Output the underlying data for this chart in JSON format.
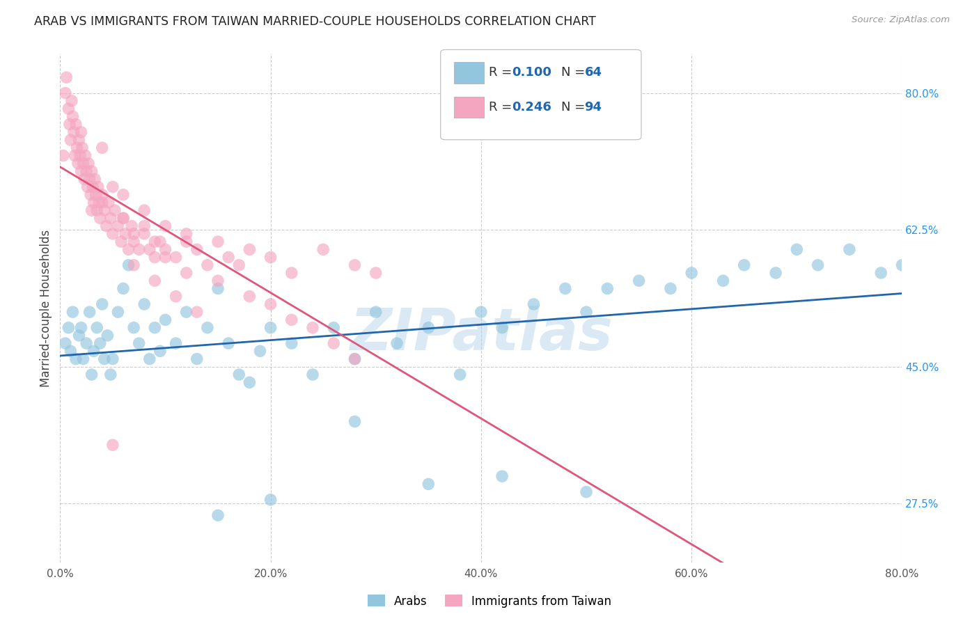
{
  "title": "ARAB VS IMMIGRANTS FROM TAIWAN MARRIED-COUPLE HOUSEHOLDS CORRELATION CHART",
  "source": "Source: ZipAtlas.com",
  "ylabel_label": "Married-couple Households",
  "xlim": [
    0.0,
    0.8
  ],
  "ylim": [
    0.2,
    0.85
  ],
  "blue_R": "0.100",
  "blue_N": "64",
  "pink_R": "0.246",
  "pink_N": "94",
  "blue_color": "#92c5de",
  "pink_color": "#f4a6c0",
  "blue_line_color": "#2166ac",
  "pink_line_color": "#e0557a",
  "watermark": "ZIPatlas",
  "ytick_vals": [
    0.275,
    0.45,
    0.625,
    0.8
  ],
  "xtick_vals": [
    0.0,
    0.2,
    0.4,
    0.6,
    0.8
  ],
  "blue_scatter_x": [
    0.005,
    0.008,
    0.01,
    0.012,
    0.015,
    0.018,
    0.02,
    0.022,
    0.025,
    0.028,
    0.03,
    0.032,
    0.035,
    0.038,
    0.04,
    0.042,
    0.045,
    0.048,
    0.05,
    0.055,
    0.06,
    0.065,
    0.07,
    0.075,
    0.08,
    0.085,
    0.09,
    0.095,
    0.1,
    0.11,
    0.12,
    0.13,
    0.14,
    0.15,
    0.16,
    0.17,
    0.18,
    0.19,
    0.2,
    0.22,
    0.24,
    0.26,
    0.28,
    0.3,
    0.32,
    0.35,
    0.38,
    0.4,
    0.42,
    0.45,
    0.48,
    0.5,
    0.52,
    0.55,
    0.58,
    0.6,
    0.63,
    0.65,
    0.68,
    0.7,
    0.72,
    0.75,
    0.78,
    0.8
  ],
  "blue_scatter_y": [
    0.48,
    0.5,
    0.47,
    0.52,
    0.46,
    0.49,
    0.5,
    0.46,
    0.48,
    0.52,
    0.44,
    0.47,
    0.5,
    0.48,
    0.53,
    0.46,
    0.49,
    0.44,
    0.46,
    0.52,
    0.55,
    0.58,
    0.5,
    0.48,
    0.53,
    0.46,
    0.5,
    0.47,
    0.51,
    0.48,
    0.52,
    0.46,
    0.5,
    0.55,
    0.48,
    0.44,
    0.43,
    0.47,
    0.5,
    0.48,
    0.44,
    0.5,
    0.46,
    0.52,
    0.48,
    0.5,
    0.44,
    0.52,
    0.5,
    0.53,
    0.55,
    0.52,
    0.55,
    0.56,
    0.55,
    0.57,
    0.56,
    0.58,
    0.57,
    0.6,
    0.58,
    0.6,
    0.57,
    0.58
  ],
  "blue_outlier_x": [
    0.15,
    0.2,
    0.28,
    0.35,
    0.42,
    0.5
  ],
  "blue_outlier_y": [
    0.26,
    0.28,
    0.38,
    0.3,
    0.31,
    0.29
  ],
  "pink_scatter_x": [
    0.003,
    0.005,
    0.006,
    0.008,
    0.009,
    0.01,
    0.011,
    0.012,
    0.013,
    0.014,
    0.015,
    0.016,
    0.017,
    0.018,
    0.019,
    0.02,
    0.021,
    0.022,
    0.023,
    0.024,
    0.025,
    0.026,
    0.027,
    0.028,
    0.029,
    0.03,
    0.031,
    0.032,
    0.033,
    0.034,
    0.035,
    0.036,
    0.037,
    0.038,
    0.04,
    0.042,
    0.044,
    0.046,
    0.048,
    0.05,
    0.052,
    0.055,
    0.058,
    0.06,
    0.062,
    0.065,
    0.068,
    0.07,
    0.075,
    0.08,
    0.085,
    0.09,
    0.095,
    0.1,
    0.11,
    0.12,
    0.13,
    0.14,
    0.15,
    0.16,
    0.17,
    0.18,
    0.2,
    0.22,
    0.25,
    0.28,
    0.3,
    0.08,
    0.05,
    0.03,
    0.04,
    0.06,
    0.07,
    0.09,
    0.1,
    0.12,
    0.15,
    0.18,
    0.2,
    0.22,
    0.24,
    0.26,
    0.28,
    0.07,
    0.09,
    0.11,
    0.13,
    0.06,
    0.08,
    0.1,
    0.12,
    0.02,
    0.04,
    0.05
  ],
  "pink_scatter_y": [
    0.72,
    0.8,
    0.82,
    0.78,
    0.76,
    0.74,
    0.79,
    0.77,
    0.75,
    0.72,
    0.76,
    0.73,
    0.71,
    0.74,
    0.72,
    0.7,
    0.73,
    0.71,
    0.69,
    0.72,
    0.7,
    0.68,
    0.71,
    0.69,
    0.67,
    0.7,
    0.68,
    0.66,
    0.69,
    0.67,
    0.65,
    0.68,
    0.66,
    0.64,
    0.67,
    0.65,
    0.63,
    0.66,
    0.64,
    0.62,
    0.65,
    0.63,
    0.61,
    0.64,
    0.62,
    0.6,
    0.63,
    0.61,
    0.6,
    0.62,
    0.6,
    0.59,
    0.61,
    0.6,
    0.59,
    0.62,
    0.6,
    0.58,
    0.61,
    0.59,
    0.58,
    0.6,
    0.59,
    0.57,
    0.6,
    0.58,
    0.57,
    0.63,
    0.68,
    0.65,
    0.66,
    0.64,
    0.62,
    0.61,
    0.59,
    0.57,
    0.56,
    0.54,
    0.53,
    0.51,
    0.5,
    0.48,
    0.46,
    0.58,
    0.56,
    0.54,
    0.52,
    0.67,
    0.65,
    0.63,
    0.61,
    0.75,
    0.73,
    0.35
  ]
}
